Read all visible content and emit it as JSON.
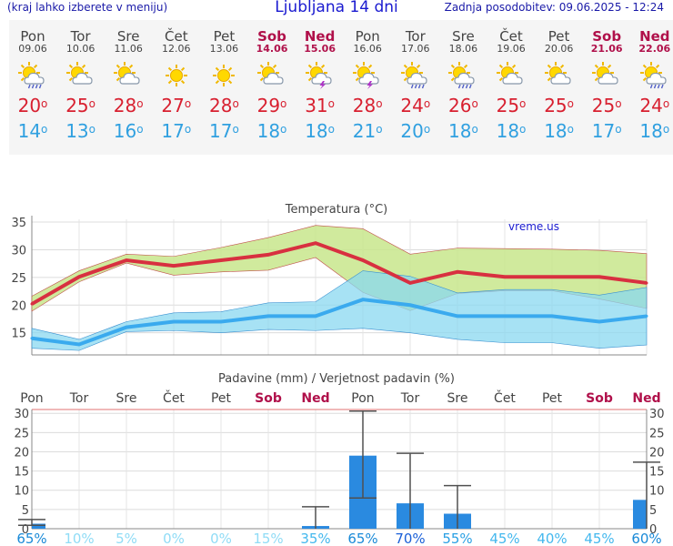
{
  "header": {
    "menu_hint": "(kraj lahko izberete v meniju)",
    "title": "Ljubljana 14 dni",
    "updated": "Zadnja posodobitev: 09.06.2025 - 12:24"
  },
  "days": [
    {
      "name": "Pon",
      "date": "09.06",
      "weekend": false,
      "icon": "sun-cloud-rain-icon",
      "tmax": "20",
      "tmin": "14",
      "precip": 1.3,
      "prob": "65%",
      "probColor": "#1a8ad8"
    },
    {
      "name": "Tor",
      "date": "10.06",
      "weekend": false,
      "icon": "sun-cloud-icon",
      "tmax": "25",
      "tmin": "13",
      "precip": 0,
      "prob": "10%",
      "probColor": "#90dcf6"
    },
    {
      "name": "Sre",
      "date": "11.06",
      "weekend": false,
      "icon": "sun-cloud-icon",
      "tmax": "28",
      "tmin": "16",
      "precip": 0,
      "prob": "5%",
      "probColor": "#90dcf6"
    },
    {
      "name": "Čet",
      "date": "12.06",
      "weekend": false,
      "icon": "sun-icon",
      "tmax": "27",
      "tmin": "17",
      "precip": 0,
      "prob": "0%",
      "probColor": "#90dcf6"
    },
    {
      "name": "Pet",
      "date": "13.06",
      "weekend": false,
      "icon": "sun-icon",
      "tmax": "28",
      "tmin": "17",
      "precip": 0,
      "prob": "0%",
      "probColor": "#90dcf6"
    },
    {
      "name": "Sob",
      "date": "14.06",
      "weekend": true,
      "icon": "sun-cloud-icon",
      "tmax": "29",
      "tmin": "18",
      "precip": 0,
      "prob": "15%",
      "probColor": "#90dcf6"
    },
    {
      "name": "Ned",
      "date": "15.06",
      "weekend": true,
      "icon": "sun-cloud-storm-icon",
      "tmax": "31",
      "tmin": "18",
      "precip": 0.7,
      "prob": "35%",
      "probColor": "#44b8ee"
    },
    {
      "name": "Pon",
      "date": "16.06",
      "weekend": false,
      "icon": "sun-cloud-storm-icon",
      "tmax": "28",
      "tmin": "21",
      "precip": 19,
      "prob": "65%",
      "probColor": "#1a8ad8"
    },
    {
      "name": "Tor",
      "date": "17.06",
      "weekend": false,
      "icon": "sun-cloud-rain-icon",
      "tmax": "24",
      "tmin": "20",
      "precip": 6.6,
      "prob": "70%",
      "probColor": "#1a60d8"
    },
    {
      "name": "Sre",
      "date": "18.06",
      "weekend": false,
      "icon": "sun-cloud-rain-icon",
      "tmax": "26",
      "tmin": "18",
      "precip": 3.9,
      "prob": "55%",
      "probColor": "#2aa0e4"
    },
    {
      "name": "Čet",
      "date": "19.06",
      "weekend": false,
      "icon": "sun-cloud-icon",
      "tmax": "25",
      "tmin": "18",
      "precip": 0,
      "prob": "45%",
      "probColor": "#44b8ee"
    },
    {
      "name": "Pet",
      "date": "20.06",
      "weekend": false,
      "icon": "sun-cloud-icon",
      "tmax": "25",
      "tmin": "18",
      "precip": 0,
      "prob": "40%",
      "probColor": "#44b8ee"
    },
    {
      "name": "Sob",
      "date": "21.06",
      "weekend": true,
      "icon": "sun-cloud-icon",
      "tmax": "25",
      "tmin": "17",
      "precip": 0,
      "prob": "45%",
      "probColor": "#44b8ee"
    },
    {
      "name": "Ned",
      "date": "22.06",
      "weekend": true,
      "icon": "sun-cloud-rain-icon",
      "tmax": "24",
      "tmin": "18",
      "precip": 7.5,
      "prob": "60%",
      "probColor": "#1a8ad8"
    }
  ],
  "colors": {
    "tmax": "#d83040",
    "tmin": "#3aaaee",
    "weekend": "#b0104a",
    "band_max": "#c8e68c",
    "band_min": "#8ad8f0",
    "overlap": "#7ccc88",
    "bar": "#2a8ae0"
  },
  "chart_data": [
    {
      "type": "line",
      "title": "Temperatura (°C)",
      "watermark": "vreme.us",
      "categories": [
        "09.06",
        "10.06",
        "11.06",
        "12.06",
        "13.06",
        "14.06",
        "15.06",
        "16.06",
        "17.06",
        "18.06",
        "19.06",
        "20.06",
        "21.06",
        "22.06"
      ],
      "ylim": [
        11,
        35.5
      ],
      "yticks": [
        15,
        20,
        25,
        30,
        35
      ],
      "grid": true,
      "series": [
        {
          "name": "tmax",
          "values": [
            20.2,
            25.1,
            28.1,
            27.1,
            28.1,
            29.1,
            31.2,
            28.1,
            24.0,
            26.0,
            25.1,
            25.1,
            25.1,
            24.0
          ],
          "band_hi": [
            21.6,
            26.2,
            29.2,
            28.8,
            30.4,
            32.2,
            34.4,
            33.8,
            29.2,
            30.3,
            30.2,
            30.1,
            29.9,
            29.3
          ],
          "band_lo": [
            18.9,
            24.2,
            27.6,
            25.4,
            26.0,
            26.3,
            28.6,
            22.3,
            19.0,
            22.1,
            22.6,
            22.6,
            21.1,
            19.4
          ]
        },
        {
          "name": "tmin",
          "values": [
            14.0,
            12.9,
            16.0,
            17.0,
            17.0,
            18.0,
            18.0,
            21.0,
            20.0,
            18.0,
            18.0,
            18.0,
            17.0,
            18.0
          ],
          "band_hi": [
            15.8,
            13.8,
            17.0,
            18.6,
            18.8,
            20.4,
            20.6,
            26.2,
            25.2,
            22.2,
            22.8,
            22.8,
            21.8,
            23.2
          ],
          "band_lo": [
            12.2,
            11.8,
            15.2,
            15.4,
            15.0,
            15.6,
            15.4,
            15.8,
            15.0,
            13.8,
            13.2,
            13.2,
            12.2,
            12.8
          ]
        }
      ]
    },
    {
      "type": "bar",
      "title": "Padavine (mm) / Verjetnost padavin (%)",
      "categories": [
        "Pon",
        "Tor",
        "Sre",
        "Čet",
        "Pet",
        "Sob",
        "Ned",
        "Pon",
        "Tor",
        "Sre",
        "Čet",
        "Pet",
        "Sob",
        "Ned"
      ],
      "ylim": [
        0,
        31
      ],
      "yticks": [
        0,
        5,
        10,
        15,
        20,
        25,
        30
      ],
      "values": [
        1.3,
        0,
        0,
        0,
        0,
        0,
        0.7,
        19.0,
        6.6,
        3.9,
        0,
        0,
        0,
        7.5
      ],
      "error_low": [
        0.9,
        0,
        0,
        0,
        0,
        0,
        0,
        8.0,
        0,
        0,
        0,
        0,
        0,
        0
      ],
      "error_high": [
        2.4,
        0,
        0,
        0,
        0,
        0,
        5.7,
        30.6,
        19.6,
        11.2,
        0,
        0,
        0,
        17.3
      ],
      "probabilities": [
        "65%",
        "10%",
        "5%",
        "0%",
        "0%",
        "15%",
        "35%",
        "65%",
        "70%",
        "55%",
        "45%",
        "40%",
        "45%",
        "60%"
      ]
    }
  ]
}
